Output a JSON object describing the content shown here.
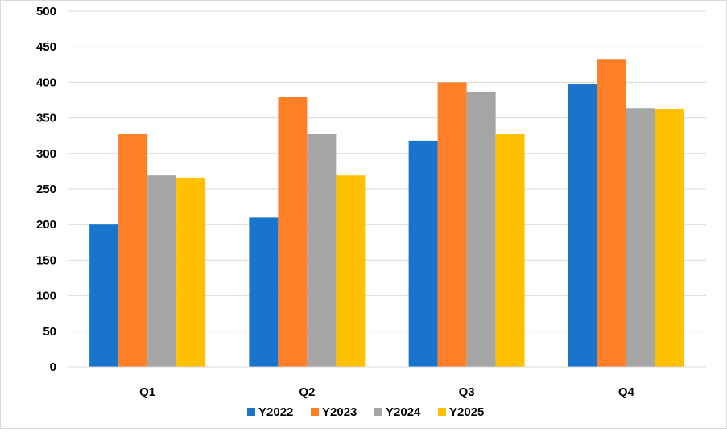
{
  "chart_data": {
    "type": "bar",
    "categories": [
      "Q1",
      "Q2",
      "Q3",
      "Q4"
    ],
    "series": [
      {
        "name": "Y2022",
        "color": "#1874CD",
        "values": [
          200,
          210,
          318,
          397
        ]
      },
      {
        "name": "Y2023",
        "color": "#FF7F27",
        "values": [
          327,
          379,
          400,
          433
        ]
      },
      {
        "name": "Y2024",
        "color": "#A5A5A5",
        "values": [
          269,
          327,
          387,
          364
        ]
      },
      {
        "name": "Y2025",
        "color": "#FFC000",
        "values": [
          266,
          269,
          328,
          363
        ]
      }
    ],
    "yticks": [
      "0",
      "50",
      "100",
      "150",
      "200",
      "250",
      "300",
      "350",
      "400",
      "450",
      "500"
    ],
    "ylim": [
      0,
      500
    ],
    "grid": true,
    "legend": "bottom"
  }
}
